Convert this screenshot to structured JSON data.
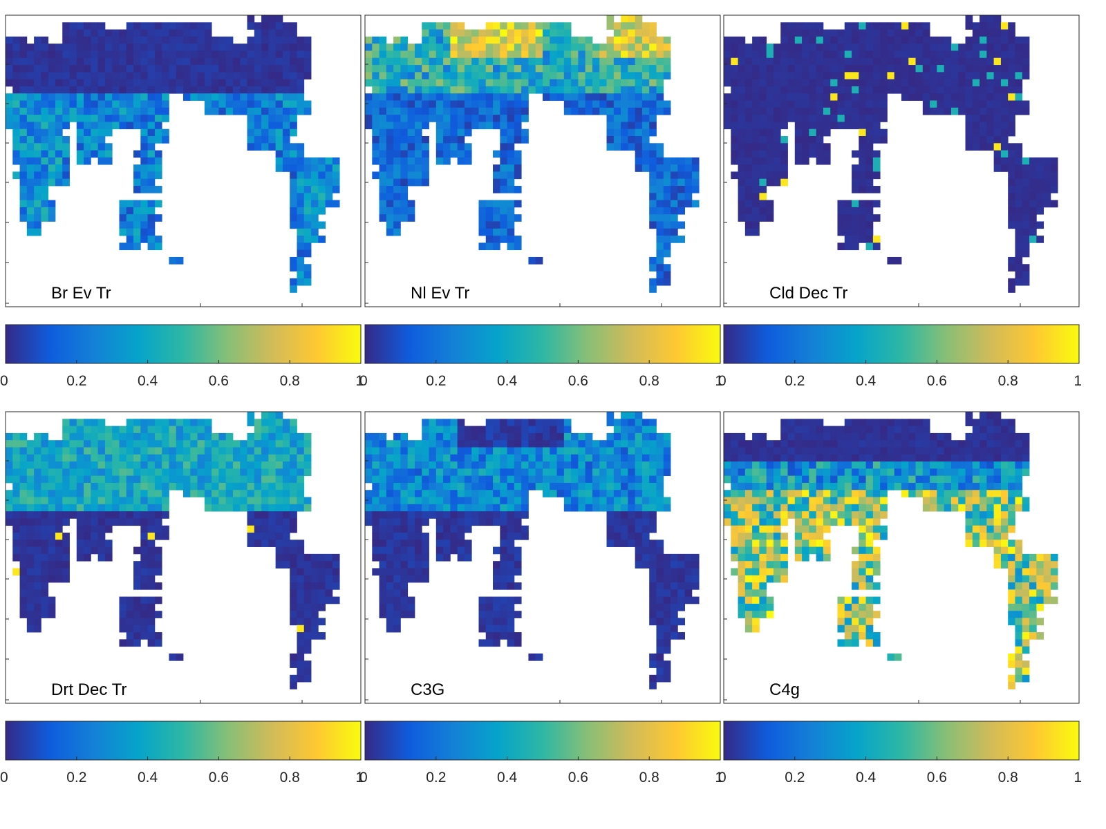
{
  "chart_data": [
    {
      "type": "heatmap",
      "panel_label": "Br Ev Tr",
      "colorbar": {
        "range": [
          0,
          1
        ],
        "ticks": [
          "0",
          "0.2",
          "0.4",
          "0.6",
          "0.8",
          "1"
        ]
      },
      "pattern": "evergreen_broadleaf"
    },
    {
      "type": "heatmap",
      "panel_label": "Nl Ev Tr",
      "colorbar": {
        "range": [
          0,
          1
        ],
        "ticks": [
          "0",
          "0.2",
          "0.4",
          "0.6",
          "0.8",
          "1"
        ]
      },
      "pattern": "needleleaf_boreal"
    },
    {
      "type": "heatmap",
      "panel_label": "Cld Dec Tr",
      "colorbar": {
        "range": [
          0,
          1
        ],
        "ticks": [
          "0",
          "0.2",
          "0.4",
          "0.6",
          "0.8",
          "1"
        ]
      },
      "pattern": "mostly_zero"
    },
    {
      "type": "heatmap",
      "panel_label": "Drt Dec Tr",
      "colorbar": {
        "range": [
          0,
          1
        ],
        "ticks": [
          "0",
          "0.2",
          "0.4",
          "0.6",
          "0.8",
          "1"
        ]
      },
      "pattern": "midlatitude_moderate"
    },
    {
      "type": "heatmap",
      "panel_label": "C3G",
      "colorbar": {
        "range": [
          0,
          1
        ],
        "ticks": [
          "0",
          "0.2",
          "0.4",
          "0.6",
          "0.8",
          "1"
        ]
      },
      "pattern": "c3_grass"
    },
    {
      "type": "heatmap",
      "panel_label": "C4g",
      "colorbar": {
        "range": [
          0,
          1
        ],
        "ticks": [
          "0",
          "0.2",
          "0.4",
          "0.6",
          "0.8",
          "1"
        ]
      },
      "pattern": "c4_grass_tropics"
    }
  ],
  "colormap": [
    "#352a87",
    "#0f5cdd",
    "#1481d6",
    "#06a4ca",
    "#2eb7a4",
    "#87bf77",
    "#d1bb59",
    "#fec832",
    "#f9fb0e"
  ]
}
